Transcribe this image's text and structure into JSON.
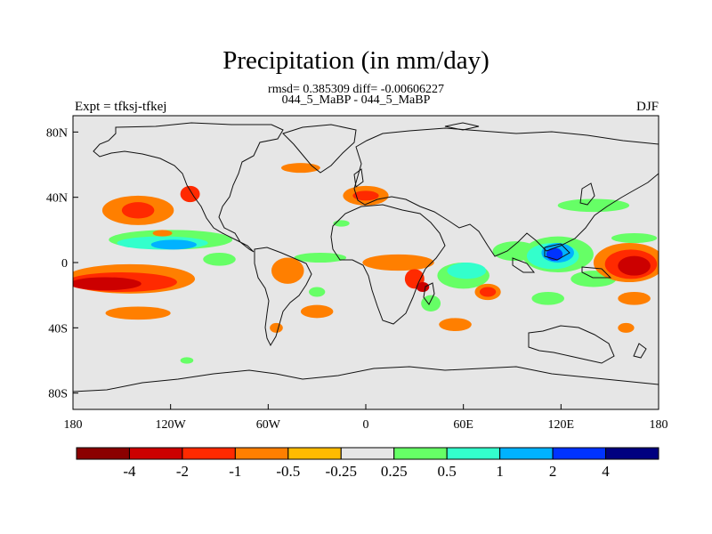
{
  "title": "Precipitation (in mm/day)",
  "subtitle_stats": "rmsd= 0.385309 diff= -0.00606227",
  "subtitle_runs": "044_5_MaBP - 044_5_MaBP",
  "experiment_label": "Expt = tfksj-tfkej",
  "season_label": "DJF",
  "map": {
    "lat_range": [
      -90,
      90
    ],
    "lon_range": [
      -180,
      180
    ],
    "lat_ticks": [
      {
        "v": 80,
        "label": "80N"
      },
      {
        "v": 40,
        "label": "40N"
      },
      {
        "v": 0,
        "label": "0"
      },
      {
        "v": -40,
        "label": "40S"
      },
      {
        "v": -80,
        "label": "80S"
      }
    ],
    "lon_ticks": [
      {
        "v": -180,
        "label": "180"
      },
      {
        "v": -120,
        "label": "120W"
      },
      {
        "v": -60,
        "label": "60W"
      },
      {
        "v": 0,
        "label": "0"
      },
      {
        "v": 60,
        "label": "60E"
      },
      {
        "v": 120,
        "label": "120E"
      },
      {
        "v": 180,
        "label": "180"
      }
    ],
    "background_color": "#e6e6e6"
  },
  "colorbar": {
    "colors": [
      "#8b0000",
      "#cc0000",
      "#ff2a00",
      "#ff7f00",
      "#ffbb00",
      "#e6e6e6",
      "#66ff66",
      "#33ffcc",
      "#00b2ff",
      "#0033ff",
      "#000080"
    ],
    "labels": [
      "-4",
      "-2",
      "-1",
      "-0.5",
      "-0.25",
      "0.25",
      "0.5",
      "1",
      "2",
      "4"
    ]
  },
  "anomalies": [
    {
      "lon": -140,
      "lat": 32,
      "rx": 22,
      "ry": 9,
      "level": -0.5
    },
    {
      "lon": -140,
      "lat": 32,
      "rx": 10,
      "ry": 5,
      "level": -1
    },
    {
      "lon": -108,
      "lat": 42,
      "rx": 6,
      "ry": 5,
      "level": -1
    },
    {
      "lon": -120,
      "lat": 14,
      "rx": 38,
      "ry": 6,
      "level": 0.5
    },
    {
      "lon": -125,
      "lat": 12,
      "rx": 28,
      "ry": 4,
      "level": 1
    },
    {
      "lon": -118,
      "lat": 11,
      "rx": 14,
      "ry": 3,
      "level": 2
    },
    {
      "lon": -145,
      "lat": -10,
      "rx": 40,
      "ry": 9,
      "level": -0.5
    },
    {
      "lon": -150,
      "lat": -12,
      "rx": 34,
      "ry": 6,
      "level": -1
    },
    {
      "lon": -160,
      "lat": -13,
      "rx": 22,
      "ry": 4,
      "level": -2
    },
    {
      "lon": -140,
      "lat": -31,
      "rx": 20,
      "ry": 4,
      "level": -0.5
    },
    {
      "lon": -125,
      "lat": 18,
      "rx": 6,
      "ry": 2,
      "level": -0.5
    },
    {
      "lon": -40,
      "lat": 58,
      "rx": 12,
      "ry": 3,
      "level": -0.5
    },
    {
      "lon": -28,
      "lat": 3,
      "rx": 16,
      "ry": 3,
      "level": 0.5
    },
    {
      "lon": -48,
      "lat": -5,
      "rx": 10,
      "ry": 8,
      "level": -0.5
    },
    {
      "lon": -30,
      "lat": -30,
      "rx": 10,
      "ry": 4,
      "level": -0.5
    },
    {
      "lon": -30,
      "lat": -18,
      "rx": 5,
      "ry": 3,
      "level": 0.5
    },
    {
      "lon": -90,
      "lat": 2,
      "rx": 10,
      "ry": 4,
      "level": 0.5
    },
    {
      "lon": -55,
      "lat": -40,
      "rx": 4,
      "ry": 3,
      "level": -0.5
    },
    {
      "lon": 0,
      "lat": 41,
      "rx": 14,
      "ry": 6,
      "level": -0.5
    },
    {
      "lon": 0,
      "lat": 41,
      "rx": 8,
      "ry": 3,
      "level": -1
    },
    {
      "lon": -15,
      "lat": 24,
      "rx": 5,
      "ry": 2,
      "level": 0.5
    },
    {
      "lon": 20,
      "lat": 0,
      "rx": 22,
      "ry": 5,
      "level": -0.5
    },
    {
      "lon": 30,
      "lat": -10,
      "rx": 6,
      "ry": 6,
      "level": -1
    },
    {
      "lon": 35,
      "lat": -15,
      "rx": 4,
      "ry": 3,
      "level": -2
    },
    {
      "lon": 40,
      "lat": -25,
      "rx": 6,
      "ry": 5,
      "level": 0.5
    },
    {
      "lon": 60,
      "lat": -8,
      "rx": 16,
      "ry": 8,
      "level": 0.5
    },
    {
      "lon": 62,
      "lat": -5,
      "rx": 12,
      "ry": 5,
      "level": 1
    },
    {
      "lon": 75,
      "lat": -18,
      "rx": 8,
      "ry": 5,
      "level": -0.5
    },
    {
      "lon": 75,
      "lat": -18,
      "rx": 5,
      "ry": 3,
      "level": -1
    },
    {
      "lon": 55,
      "lat": -38,
      "rx": 10,
      "ry": 4,
      "level": -0.5
    },
    {
      "lon": 92,
      "lat": 7,
      "rx": 14,
      "ry": 6,
      "level": 0.5
    },
    {
      "lon": 118,
      "lat": 5,
      "rx": 22,
      "ry": 11,
      "level": 0.5
    },
    {
      "lon": 115,
      "lat": 4,
      "rx": 16,
      "ry": 8,
      "level": 1
    },
    {
      "lon": 118,
      "lat": 6,
      "rx": 10,
      "ry": 6,
      "level": 2
    },
    {
      "lon": 116,
      "lat": 5,
      "rx": 5,
      "ry": 4,
      "level": 4
    },
    {
      "lon": 112,
      "lat": -22,
      "rx": 10,
      "ry": 4,
      "level": 0.5
    },
    {
      "lon": 140,
      "lat": 35,
      "rx": 22,
      "ry": 4,
      "level": 0.5
    },
    {
      "lon": 140,
      "lat": -10,
      "rx": 14,
      "ry": 5,
      "level": 0.5
    },
    {
      "lon": 162,
      "lat": 0,
      "rx": 22,
      "ry": 12,
      "level": -0.5
    },
    {
      "lon": 163,
      "lat": -1,
      "rx": 16,
      "ry": 9,
      "level": -1
    },
    {
      "lon": 165,
      "lat": -2,
      "rx": 10,
      "ry": 6,
      "level": -2
    },
    {
      "lon": 165,
      "lat": -22,
      "rx": 10,
      "ry": 4,
      "level": -0.5
    },
    {
      "lon": 165,
      "lat": 15,
      "rx": 14,
      "ry": 3,
      "level": 0.5
    },
    {
      "lon": 160,
      "lat": -40,
      "rx": 5,
      "ry": 3,
      "level": -0.5
    },
    {
      "lon": -110,
      "lat": -60,
      "rx": 4,
      "ry": 2,
      "level": 0.5
    }
  ]
}
